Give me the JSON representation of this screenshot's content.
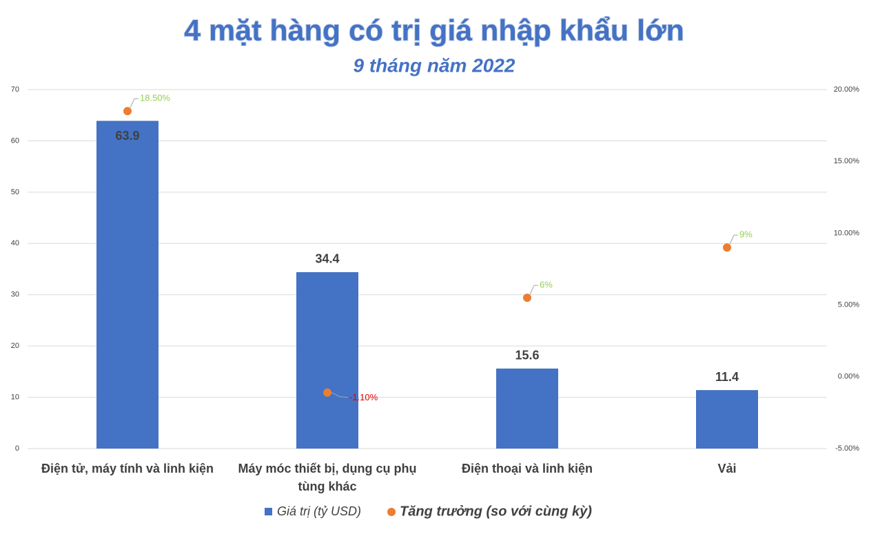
{
  "chart_data": {
    "type": "bar-scatter",
    "title": "4 mặt hàng có trị giá nhập khẩu lớn",
    "subtitle": "9 tháng năm 2022",
    "categories": [
      "Điện tử, máy tính và linh kiện",
      "Máy móc thiết bị, dụng cụ phụ tùng khác",
      "Điện thoại và linh kiện",
      "Vải"
    ],
    "series": [
      {
        "name": "Giá trị (tỷ USD)",
        "type": "bar",
        "color": "#4472c4",
        "values": [
          63.9,
          34.4,
          15.6,
          11.4
        ]
      },
      {
        "name": "Tăng trưởng (so với cùng kỳ)",
        "type": "scatter",
        "axis": "y2",
        "color": "#ed7d31",
        "values": [
          18.5,
          -1.1,
          5.5,
          9
        ],
        "value_labels": [
          "18.50%",
          "-1.10%",
          "6%",
          "9%"
        ],
        "positive_label_color": "#92d050",
        "negative_label_color": "#e00000"
      }
    ],
    "ylim": [
      0,
      70
    ],
    "yticks": [
      0,
      10,
      20,
      30,
      40,
      50,
      60,
      70
    ],
    "y2lim": [
      -5,
      20
    ],
    "y2ticks": [
      {
        "value": -5,
        "label": "-5.00%"
      },
      {
        "value": 0,
        "label": "0.00%"
      },
      {
        "value": 5,
        "label": "5.00%"
      },
      {
        "value": 10,
        "label": "10.00%"
      },
      {
        "value": 15,
        "label": "15.00%"
      },
      {
        "value": 20,
        "label": "20.00%"
      }
    ],
    "grid": true,
    "legend": "bottom"
  }
}
